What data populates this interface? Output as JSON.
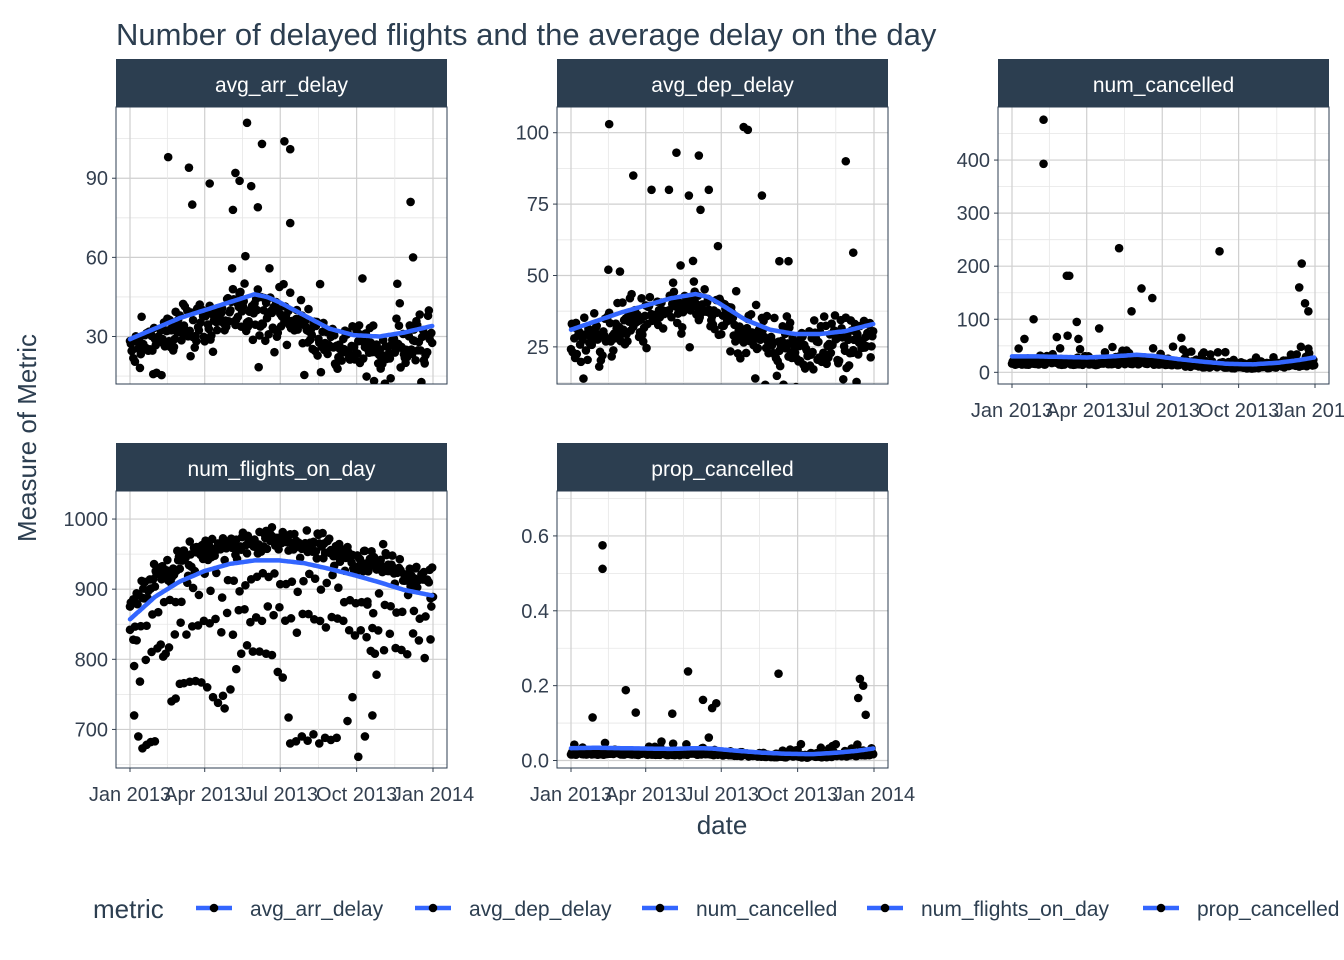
{
  "chart_data": {
    "type": "scatter",
    "title": "Number of delayed flights and the average delay on the day",
    "xlabel": "date",
    "ylabel": "Measure of Metric",
    "strip_color": "#2c3e50",
    "point_color": "#000000",
    "smooth_color": "#3366ff",
    "grid": true,
    "legend": {
      "title": "metric",
      "position": "bottom",
      "entries": [
        "avg_arr_delay",
        "avg_dep_delay",
        "num_cancelled",
        "num_flights_on_day",
        "prop_cancelled"
      ]
    },
    "x_ticks": [
      "Jan 2013",
      "Apr 2013",
      "Jul 2013",
      "Oct 2013",
      "Jan 2014"
    ],
    "x_range": [
      "2013-01-01",
      "2013-12-31"
    ],
    "panels": [
      {
        "name": "avg_arr_delay",
        "ylim": [
          12,
          117
        ],
        "y_ticks": [
          30,
          60,
          90
        ],
        "smooth": [
          [
            0,
            29
          ],
          [
            30,
            33
          ],
          [
            60,
            37
          ],
          [
            90,
            40
          ],
          [
            120,
            43
          ],
          [
            150,
            46
          ],
          [
            165,
            45
          ],
          [
            180,
            43
          ],
          [
            210,
            38
          ],
          [
            240,
            33
          ],
          [
            270,
            30.5
          ],
          [
            300,
            30
          ],
          [
            330,
            31.5
          ],
          [
            364,
            34
          ]
        ],
        "highlights": [
          [
            141,
            111
          ],
          [
            159,
            103
          ],
          [
            186,
            104
          ],
          [
            193,
            101
          ],
          [
            46,
            98
          ],
          [
            71,
            94
          ],
          [
            127,
            92
          ],
          [
            132,
            89
          ],
          [
            146,
            87
          ],
          [
            96,
            88
          ],
          [
            338,
            81
          ],
          [
            75,
            80
          ],
          [
            124,
            78
          ],
          [
            154,
            79
          ],
          [
            193,
            73
          ],
          [
            341,
            60
          ],
          [
            322,
            50
          ],
          [
            280,
            52
          ]
        ]
      },
      {
        "name": "avg_dep_delay",
        "ylim": [
          12,
          109
        ],
        "y_ticks": [
          25,
          50,
          75,
          100
        ],
        "smooth": [
          [
            0,
            31
          ],
          [
            30,
            34
          ],
          [
            60,
            37
          ],
          [
            90,
            39.5
          ],
          [
            120,
            42
          ],
          [
            150,
            43.5
          ],
          [
            165,
            42.5
          ],
          [
            180,
            40
          ],
          [
            210,
            34.5
          ],
          [
            240,
            31
          ],
          [
            270,
            29.5
          ],
          [
            300,
            29.5
          ],
          [
            330,
            30.5
          ],
          [
            364,
            33
          ]
        ],
        "highlights": [
          [
            46,
            103
          ],
          [
            208,
            102
          ],
          [
            213,
            101
          ],
          [
            127,
            93
          ],
          [
            154,
            92
          ],
          [
            331,
            90
          ],
          [
            75,
            85
          ],
          [
            97,
            80
          ],
          [
            118,
            80
          ],
          [
            142,
            78
          ],
          [
            230,
            78
          ],
          [
            166,
            80
          ],
          [
            156,
            73
          ],
          [
            251,
            55
          ],
          [
            340,
            58
          ],
          [
            262,
            55
          ]
        ]
      },
      {
        "name": "num_cancelled",
        "ylim": [
          -22,
          500
        ],
        "y_ticks": [
          0,
          100,
          200,
          300,
          400
        ],
        "smooth": [
          [
            0,
            30
          ],
          [
            30,
            30
          ],
          [
            60,
            29
          ],
          [
            90,
            28
          ],
          [
            120,
            30
          ],
          [
            150,
            33
          ],
          [
            170,
            31
          ],
          [
            200,
            25
          ],
          [
            230,
            20
          ],
          [
            260,
            16
          ],
          [
            290,
            15
          ],
          [
            320,
            18
          ],
          [
            345,
            23
          ],
          [
            364,
            28
          ]
        ],
        "highlights": [
          [
            38,
            476
          ],
          [
            38,
            393
          ],
          [
            66,
            182
          ],
          [
            69,
            182
          ],
          [
            156,
            158
          ],
          [
            129,
            234
          ],
          [
            250,
            228
          ],
          [
            349,
            205
          ],
          [
            346,
            160
          ],
          [
            353,
            130
          ],
          [
            357,
            115
          ],
          [
            169,
            140
          ],
          [
            144,
            115
          ],
          [
            78,
            95
          ],
          [
            26,
            100
          ]
        ]
      },
      {
        "name": "num_flights_on_day",
        "ylim": [
          645,
          1040
        ],
        "y_ticks": [
          700,
          800,
          900,
          1000
        ],
        "smooth": [
          [
            0,
            857
          ],
          [
            30,
            889
          ],
          [
            60,
            911
          ],
          [
            90,
            926
          ],
          [
            120,
            936
          ],
          [
            150,
            941
          ],
          [
            180,
            941
          ],
          [
            210,
            937
          ],
          [
            240,
            929
          ],
          [
            270,
            920
          ],
          [
            300,
            910
          ],
          [
            330,
            899
          ],
          [
            364,
            891
          ]
        ],
        "highlights": [
          [
            0,
            842
          ],
          [
            4,
            828
          ],
          [
            8,
            827
          ],
          [
            5,
            720
          ],
          [
            10,
            690
          ],
          [
            15,
            673
          ],
          [
            20,
            678
          ],
          [
            25,
            682
          ],
          [
            30,
            683
          ],
          [
            37,
            821
          ],
          [
            43,
            808
          ],
          [
            50,
            740
          ],
          [
            55,
            744
          ],
          [
            60,
            765
          ],
          [
            65,
            766
          ],
          [
            72,
            768
          ],
          [
            79,
            769
          ],
          [
            86,
            767
          ],
          [
            93,
            760
          ],
          [
            100,
            746
          ],
          [
            106,
            738
          ],
          [
            112,
            748
          ],
          [
            114,
            730
          ],
          [
            121,
            757
          ],
          [
            128,
            786
          ],
          [
            134,
            808
          ],
          [
            141,
            820
          ],
          [
            148,
            811
          ],
          [
            156,
            811
          ],
          [
            164,
            808
          ],
          [
            171,
            806
          ],
          [
            178,
            782
          ],
          [
            184,
            774
          ],
          [
            191,
            717
          ],
          [
            193,
            680
          ],
          [
            200,
            683
          ],
          [
            207,
            690
          ],
          [
            214,
            684
          ],
          [
            221,
            693
          ],
          [
            228,
            680
          ],
          [
            235,
            688
          ],
          [
            242,
            685
          ],
          [
            249,
            688
          ],
          [
            262,
            712
          ],
          [
            268,
            746
          ],
          [
            275,
            661
          ],
          [
            283,
            690
          ],
          [
            286,
            878
          ],
          [
            292,
            720
          ],
          [
            295,
            808
          ],
          [
            297,
            778
          ],
          [
            290,
            812
          ],
          [
            362,
            887
          ],
          [
            365,
            889
          ]
        ]
      },
      {
        "name": "prop_cancelled",
        "ylim": [
          -0.02,
          0.72
        ],
        "y_ticks": [
          0.0,
          0.2,
          0.4,
          0.6
        ],
        "smooth": [
          [
            0,
            0.033
          ],
          [
            30,
            0.034
          ],
          [
            60,
            0.033
          ],
          [
            90,
            0.032
          ],
          [
            120,
            0.031
          ],
          [
            150,
            0.033
          ],
          [
            170,
            0.032
          ],
          [
            200,
            0.026
          ],
          [
            230,
            0.021
          ],
          [
            260,
            0.018
          ],
          [
            290,
            0.017
          ],
          [
            320,
            0.021
          ],
          [
            345,
            0.026
          ],
          [
            364,
            0.032
          ]
        ],
        "highlights": [
          [
            38,
            0.575
          ],
          [
            38,
            0.512
          ],
          [
            66,
            0.188
          ],
          [
            141,
            0.238
          ],
          [
            250,
            0.232
          ],
          [
            348,
            0.218
          ],
          [
            346,
            0.167
          ],
          [
            352,
            0.2
          ],
          [
            355,
            0.122
          ],
          [
            122,
            0.125
          ],
          [
            159,
            0.162
          ],
          [
            78,
            0.128
          ],
          [
            26,
            0.115
          ],
          [
            175,
            0.153
          ],
          [
            170,
            0.14
          ]
        ]
      }
    ]
  }
}
